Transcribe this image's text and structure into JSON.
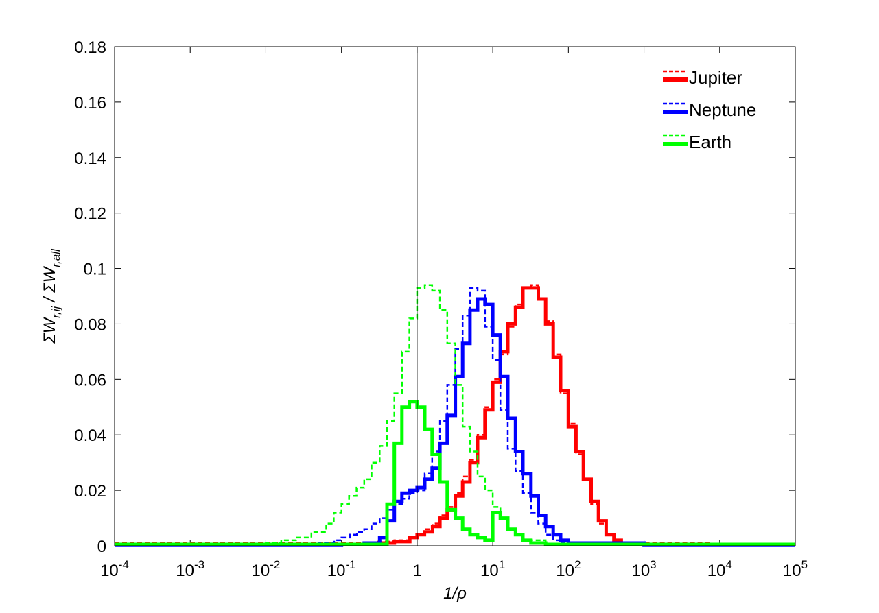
{
  "chart_data": {
    "type": "line",
    "title": "",
    "xlabel": "1/ρ",
    "ylabel_main": "ΣW",
    "ylabel_sub1": "r,ij",
    "ylabel_mid": " / ΣW",
    "ylabel_sub2": "r,all",
    "xscale": "log",
    "xlim": [
      0.0001,
      100000
    ],
    "ylim": [
      0,
      0.18
    ],
    "grid": false,
    "legend_position": "top-right",
    "vline_x": 1,
    "xticks": [
      {
        "value": 0.0001,
        "base": "10",
        "exp": "-4"
      },
      {
        "value": 0.001,
        "base": "10",
        "exp": "-3"
      },
      {
        "value": 0.01,
        "base": "10",
        "exp": "-2"
      },
      {
        "value": 0.1,
        "base": "10",
        "exp": "-1"
      },
      {
        "value": 1,
        "base": "1",
        "exp": ""
      },
      {
        "value": 10,
        "base": "10",
        "exp": "1"
      },
      {
        "value": 100,
        "base": "10",
        "exp": "2"
      },
      {
        "value": 1000,
        "base": "10",
        "exp": "3"
      },
      {
        "value": 10000,
        "base": "10",
        "exp": "4"
      },
      {
        "value": 100000,
        "base": "10",
        "exp": "5"
      }
    ],
    "yticks": [
      {
        "value": 0,
        "label": "0"
      },
      {
        "value": 0.02,
        "label": "0.02"
      },
      {
        "value": 0.04,
        "label": "0.04"
      },
      {
        "value": 0.06,
        "label": "0.06"
      },
      {
        "value": 0.08,
        "label": "0.08"
      },
      {
        "value": 0.1,
        "label": "0.1"
      },
      {
        "value": 0.12,
        "label": "0.12"
      },
      {
        "value": 0.14,
        "label": "0.14"
      },
      {
        "value": 0.16,
        "label": "0.16"
      },
      {
        "value": 0.18,
        "label": "0.18"
      }
    ],
    "legend": [
      {
        "name": "Jupiter",
        "color": "#ff0000"
      },
      {
        "name": "Neptune",
        "color": "#0000ff"
      },
      {
        "name": "Earth",
        "color": "#00ff00"
      }
    ],
    "series": [
      {
        "planet": "Jupiter",
        "style": "dashed",
        "color": "#ff0000",
        "x": [
          0.0001,
          0.3,
          0.5,
          0.8,
          1.0,
          1.25,
          1.6,
          2.0,
          2.5,
          3.2,
          4.0,
          5.0,
          6.3,
          7.9,
          10,
          12.6,
          15.8,
          20,
          25,
          32,
          40,
          50,
          63,
          79,
          100,
          126,
          158,
          200,
          250,
          316,
          400,
          500,
          700,
          1000,
          8000,
          100000
        ],
        "y": [
          0.001,
          0.0015,
          0.002,
          0.003,
          0.004,
          0.006,
          0.008,
          0.011,
          0.014,
          0.019,
          0.025,
          0.031,
          0.04,
          0.05,
          0.06,
          0.069,
          0.079,
          0.087,
          0.093,
          0.094,
          0.089,
          0.081,
          0.069,
          0.055,
          0.044,
          0.033,
          0.024,
          0.015,
          0.008,
          0.004,
          0.002,
          0.001,
          0.0005,
          0.001,
          0.0008,
          0.0008
        ]
      },
      {
        "planet": "Jupiter",
        "style": "solid",
        "color": "#ff0000",
        "x": [
          0.0001,
          0.3,
          0.5,
          0.8,
          1.0,
          1.25,
          1.6,
          2.0,
          2.5,
          3.2,
          4.0,
          5.0,
          6.3,
          7.9,
          10,
          12.6,
          15.8,
          20,
          25,
          32,
          40,
          50,
          63,
          79,
          100,
          126,
          158,
          200,
          250,
          316,
          400,
          500,
          700,
          1000,
          8000,
          100000
        ],
        "y": [
          0.0005,
          0.001,
          0.0015,
          0.003,
          0.004,
          0.005,
          0.007,
          0.01,
          0.013,
          0.018,
          0.023,
          0.03,
          0.039,
          0.049,
          0.059,
          0.07,
          0.08,
          0.086,
          0.093,
          0.093,
          0.089,
          0.08,
          0.068,
          0.056,
          0.043,
          0.034,
          0.024,
          0.016,
          0.009,
          0.004,
          0.002,
          0.001,
          0.0005,
          0.0005,
          0.0005,
          0.0005
        ]
      },
      {
        "planet": "Neptune",
        "style": "dashed",
        "color": "#0000ff",
        "x": [
          0.0001,
          0.05,
          0.08,
          0.1,
          0.13,
          0.16,
          0.2,
          0.25,
          0.32,
          0.4,
          0.5,
          0.63,
          0.79,
          1.0,
          1.26,
          1.58,
          2.0,
          2.5,
          3.2,
          4.0,
          5.0,
          6.3,
          7.9,
          10,
          12.6,
          15.8,
          20,
          25,
          32,
          40,
          50,
          63,
          79,
          100,
          1000,
          100000
        ],
        "y": [
          0.0003,
          0.001,
          0.002,
          0.003,
          0.004,
          0.005,
          0.006,
          0.008,
          0.01,
          0.013,
          0.015,
          0.017,
          0.019,
          0.02,
          0.026,
          0.034,
          0.045,
          0.058,
          0.071,
          0.083,
          0.093,
          0.092,
          0.079,
          0.067,
          0.049,
          0.035,
          0.027,
          0.019,
          0.012,
          0.008,
          0.004,
          0.002,
          0.001,
          0.0005,
          0.0003,
          0.0003
        ]
      },
      {
        "planet": "Neptune",
        "style": "solid",
        "color": "#0000ff",
        "x": [
          0.0001,
          0.1,
          0.2,
          0.32,
          0.4,
          0.5,
          0.63,
          0.79,
          1.0,
          1.26,
          1.58,
          2.0,
          2.5,
          3.2,
          4.0,
          5.0,
          6.3,
          7.9,
          10,
          12.6,
          15.8,
          20,
          25,
          32,
          40,
          50,
          63,
          79,
          100,
          1000,
          100000
        ],
        "y": [
          0.0002,
          0.0005,
          0.001,
          0.003,
          0.009,
          0.016,
          0.019,
          0.02,
          0.021,
          0.024,
          0.028,
          0.037,
          0.047,
          0.061,
          0.073,
          0.085,
          0.089,
          0.087,
          0.076,
          0.061,
          0.046,
          0.034,
          0.026,
          0.018,
          0.011,
          0.007,
          0.004,
          0.002,
          0.001,
          0.0002,
          0.0002
        ]
      },
      {
        "planet": "Earth",
        "style": "dashed",
        "color": "#00ff00",
        "x": [
          0.0001,
          0.01,
          0.016,
          0.025,
          0.04,
          0.063,
          0.079,
          0.1,
          0.126,
          0.158,
          0.2,
          0.25,
          0.32,
          0.4,
          0.5,
          0.63,
          0.79,
          1.0,
          1.26,
          1.58,
          2.0,
          2.5,
          3.2,
          4.0,
          5.0,
          6.3,
          7.9,
          10,
          12.6,
          15.8,
          20,
          25,
          50,
          100000
        ],
        "y": [
          0.0005,
          0.001,
          0.002,
          0.003,
          0.005,
          0.008,
          0.012,
          0.015,
          0.018,
          0.021,
          0.024,
          0.03,
          0.036,
          0.045,
          0.055,
          0.07,
          0.082,
          0.093,
          0.094,
          0.092,
          0.085,
          0.073,
          0.058,
          0.043,
          0.034,
          0.025,
          0.02,
          0.014,
          0.01,
          0.006,
          0.004,
          0.002,
          0.0005,
          0.0005
        ]
      },
      {
        "planet": "Earth",
        "style": "solid",
        "color": "#00ff00",
        "x": [
          0.0001,
          0.36,
          0.4,
          0.5,
          0.63,
          0.79,
          1.0,
          1.26,
          1.58,
          2.0,
          2.5,
          3.2,
          4.0,
          5.0,
          6.3,
          7.9,
          10,
          12.6,
          15.8,
          20,
          25,
          32,
          50,
          100000
        ],
        "y": [
          0.0005,
          0.0005,
          0.015,
          0.037,
          0.05,
          0.052,
          0.05,
          0.042,
          0.033,
          0.023,
          0.013,
          0.01,
          0.006,
          0.004,
          0.003,
          0.002,
          0.012,
          0.01,
          0.006,
          0.004,
          0.002,
          0.001,
          0.0005,
          0.0005
        ]
      }
    ]
  }
}
